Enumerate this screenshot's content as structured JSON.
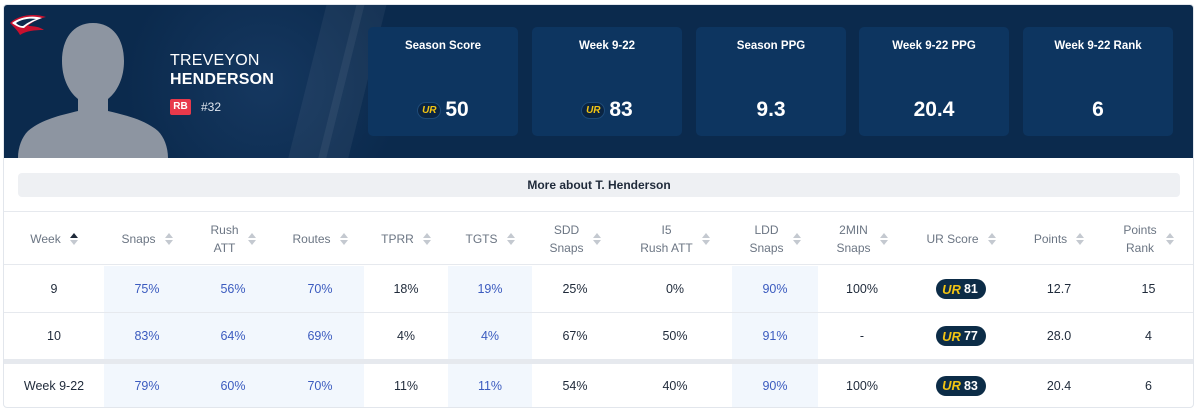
{
  "player": {
    "first_name": "TREVEYON",
    "last_name": "HENDERSON",
    "position": "RB",
    "jersey": "#32"
  },
  "stats": [
    {
      "label": "Season Score",
      "value": "50",
      "has_ur_logo": true
    },
    {
      "label": "Week 9-22",
      "value": "83",
      "has_ur_logo": true
    },
    {
      "label": "Season PPG",
      "value": "9.3",
      "has_ur_logo": false
    },
    {
      "label": "Week 9-22 PPG",
      "value": "20.4",
      "has_ur_logo": false
    },
    {
      "label": "Week 9-22 Rank",
      "value": "6",
      "has_ur_logo": false
    }
  ],
  "ur_logo_text": "UR",
  "more_button_label": "More about T. Henderson",
  "table": {
    "headers": [
      {
        "line1": "Week",
        "line2": "",
        "sort": "asc"
      },
      {
        "line1": "Snaps",
        "line2": "",
        "sort": "none"
      },
      {
        "line1": "Rush",
        "line2": "ATT",
        "sort": "none"
      },
      {
        "line1": "Routes",
        "line2": "",
        "sort": "none"
      },
      {
        "line1": "TPRR",
        "line2": "",
        "sort": "none"
      },
      {
        "line1": "TGTS",
        "line2": "",
        "sort": "none"
      },
      {
        "line1": "SDD",
        "line2": "Snaps",
        "sort": "none"
      },
      {
        "line1": "I5",
        "line2": "Rush ATT",
        "sort": "none"
      },
      {
        "line1": "LDD",
        "line2": "Snaps",
        "sort": "none"
      },
      {
        "line1": "2MIN",
        "line2": "Snaps",
        "sort": "none"
      },
      {
        "line1": "UR Score",
        "line2": "",
        "sort": "none"
      },
      {
        "line1": "Points",
        "line2": "",
        "sort": "none"
      },
      {
        "line1": "Points",
        "line2": "Rank",
        "sort": "none"
      }
    ],
    "rows": [
      {
        "week": "9",
        "snaps": "75%",
        "rush_att": "56%",
        "routes": "70%",
        "tprr": "18%",
        "tgts": "19%",
        "sdd_snaps": "25%",
        "i5_rush_att": "0%",
        "ldd_snaps": "90%",
        "two_min_snaps": "100%",
        "ur_score": "81",
        "points": "12.7",
        "points_rank": "15"
      },
      {
        "week": "10",
        "snaps": "83%",
        "rush_att": "64%",
        "routes": "69%",
        "tprr": "4%",
        "tgts": "4%",
        "sdd_snaps": "67%",
        "i5_rush_att": "50%",
        "ldd_snaps": "91%",
        "two_min_snaps": "-",
        "ur_score": "77",
        "points": "28.0",
        "points_rank": "4"
      }
    ],
    "total": {
      "week": "Week 9-22",
      "snaps": "79%",
      "rush_att": "60%",
      "routes": "70%",
      "tprr": "11%",
      "tgts": "11%",
      "sdd_snaps": "54%",
      "i5_rush_att": "40%",
      "ldd_snaps": "90%",
      "two_min_snaps": "100%",
      "ur_score": "83",
      "points": "20.4",
      "points_rank": "6"
    }
  },
  "colors": {
    "header_bg": "#0b2a4d",
    "stat_box_bg": "#0d3560",
    "position_badge": "#e8394b",
    "highlight_cell_bg": "#f2f7fd",
    "highlight_cell_text": "#3b5bbf",
    "ur_pill_bg": "#0c2c47",
    "ur_accent": "#f2c413"
  },
  "icons": {
    "team_logo": "patriots-logo-icon",
    "player_photo": "player-silhouette-icon",
    "sort": "sort-arrows-icon"
  }
}
